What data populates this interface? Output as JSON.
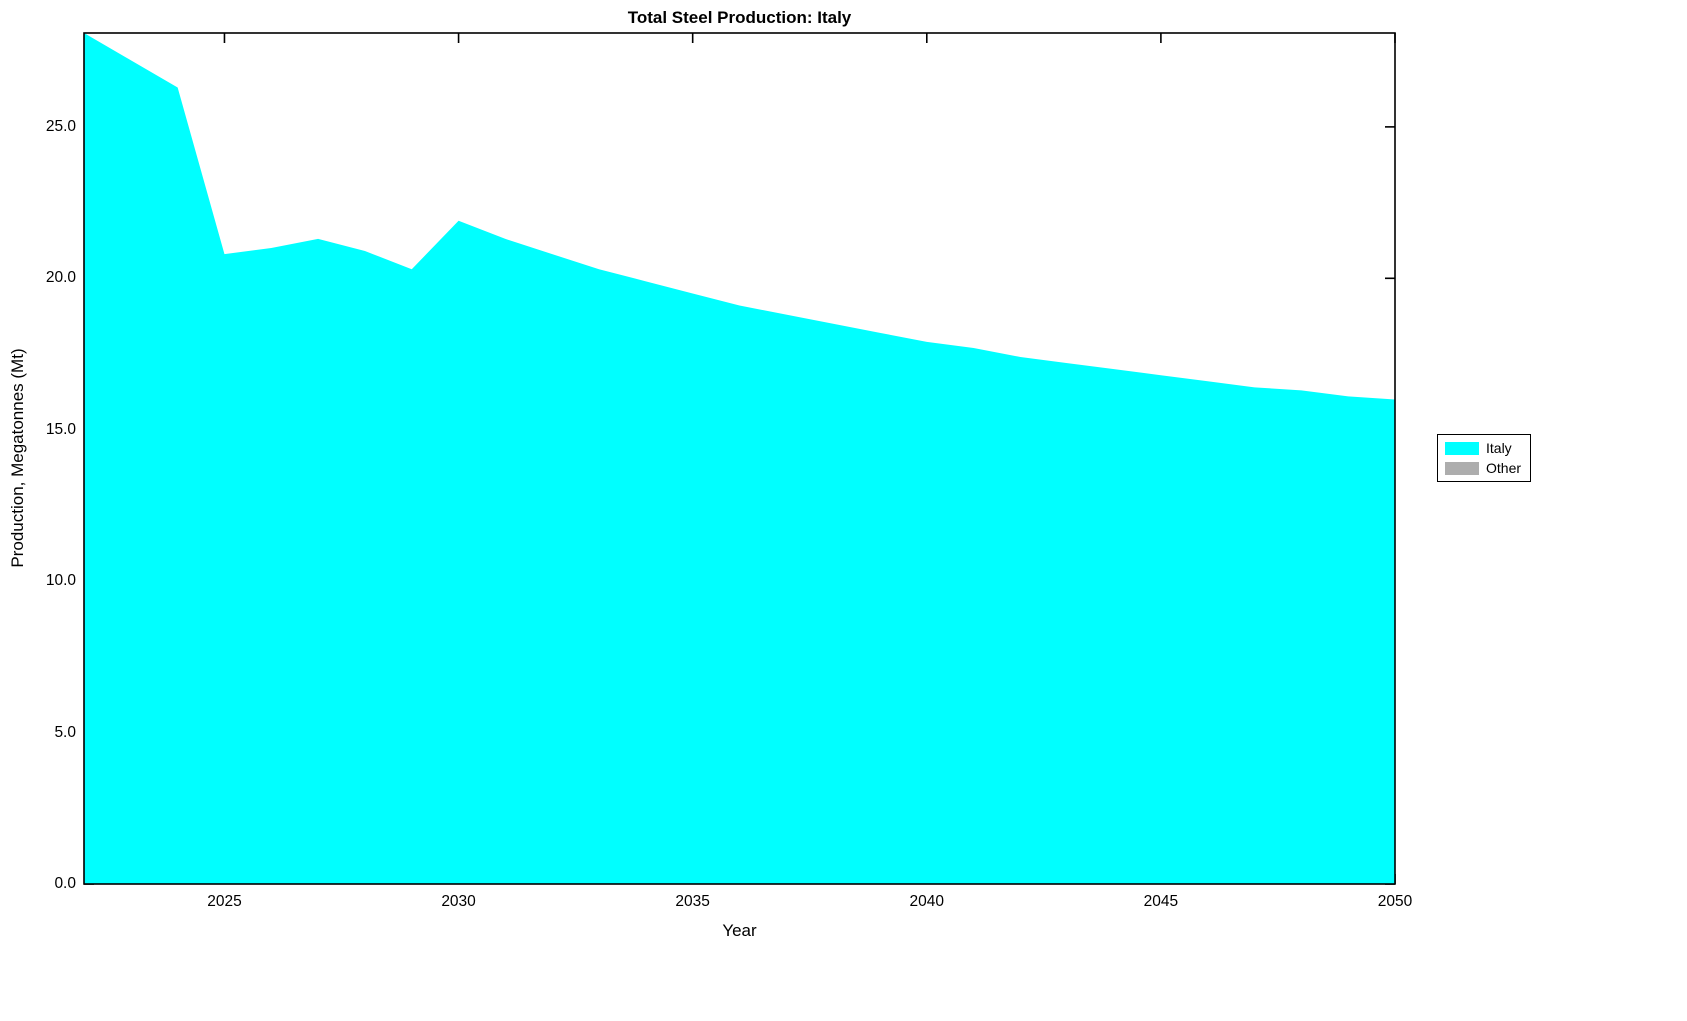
{
  "chart_data": {
    "type": "area",
    "title": "Total Steel Production: Italy",
    "xlabel": "Year",
    "ylabel": "Production, Megatonnes (Mt)",
    "x": [
      2022,
      2023,
      2024,
      2025,
      2026,
      2027,
      2028,
      2029,
      2030,
      2031,
      2032,
      2033,
      2034,
      2035,
      2036,
      2037,
      2038,
      2039,
      2040,
      2041,
      2042,
      2043,
      2044,
      2045,
      2046,
      2047,
      2048,
      2049,
      2050
    ],
    "series": [
      {
        "name": "Italy",
        "color": "#00FFFF",
        "values": [
          28.1,
          27.2,
          26.3,
          20.8,
          21.0,
          21.3,
          20.9,
          20.3,
          21.9,
          21.3,
          20.8,
          20.3,
          19.9,
          19.5,
          19.1,
          18.8,
          18.5,
          18.2,
          17.9,
          17.7,
          17.4,
          17.2,
          17.0,
          16.8,
          16.6,
          16.4,
          16.3,
          16.1,
          16.0
        ]
      },
      {
        "name": "Other",
        "color": "#ADADAD",
        "values": []
      }
    ],
    "xlim": [
      2022,
      2050
    ],
    "ylim": [
      0,
      28.1
    ],
    "xticks": [
      2025,
      2030,
      2035,
      2040,
      2045,
      2050
    ],
    "yticks": [
      0,
      5,
      10,
      15,
      20,
      25
    ],
    "ytick_labels": [
      "0.0",
      "5.0",
      "10.0",
      "15.0",
      "20.0",
      "25.0"
    ],
    "grid": false,
    "legend_position": "right-outside",
    "legend": [
      {
        "label": "Italy",
        "color": "#00FFFF"
      },
      {
        "label": "Other",
        "color": "#ADADAD"
      }
    ],
    "axis_color": "#000000",
    "background_color": "#FFFFFF"
  }
}
